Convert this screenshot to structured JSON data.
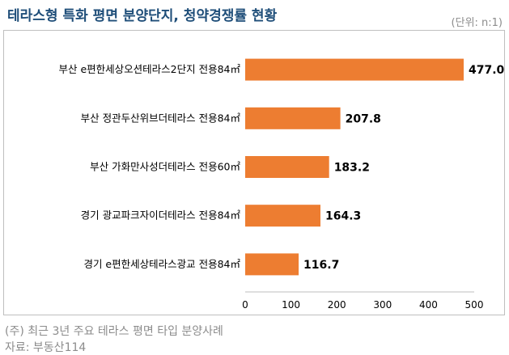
{
  "title": "테라스형 특화 평면 분양단지, 청약경쟁률 현황",
  "unit_note": "(단위: n:1)",
  "footnote": "(주) 최근 3년 주요 테라스 평면 타입 분양사례",
  "source": "자료: 부동산114",
  "chart_data": {
    "type": "bar",
    "orientation": "horizontal",
    "title": "테라스형 특화 평면 분양단지, 청약경쟁률 현황",
    "unit": "(단위: n:1)",
    "categories": [
      "부산 e편한세상오션테라스2단지 전용84㎡",
      "부산 정관두산위브더테라스 전용84㎡",
      "부산 가화만사성더테라스 전용60㎡",
      "경기 광교파크자이더테라스 전용84㎡",
      "경기 e편한세상테라스광교 전용84㎡"
    ],
    "values": [
      477.0,
      207.8,
      183.2,
      164.3,
      116.7
    ],
    "value_labels": [
      "477.0",
      "207.8",
      "183.2",
      "164.3",
      "116.7"
    ],
    "xlim": [
      0,
      500
    ],
    "xticks": [
      0,
      100,
      200,
      300,
      400,
      500
    ],
    "bar_color": "#ed7d31",
    "grid": false,
    "legend": "none"
  }
}
